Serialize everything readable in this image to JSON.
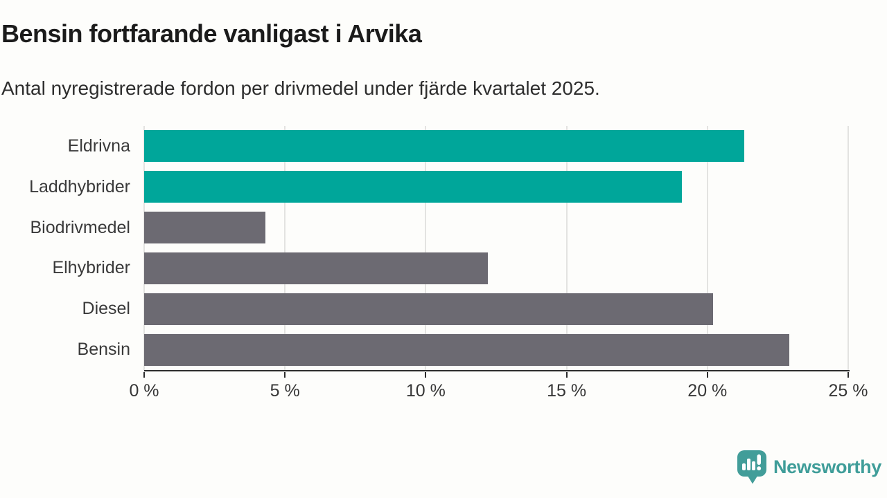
{
  "header": {
    "title": "Bensin fortfarande vanligast i Arvika",
    "subtitle": "Antal nyregistrerade fordon per drivmedel under fjärde kvartalet 2025."
  },
  "chart_data": {
    "type": "bar",
    "orientation": "horizontal",
    "title": "Bensin fortfarande vanligast i Arvika",
    "subtitle": "Antal nyregistrerade fordon per drivmedel under fjärde kvartalet 2025.",
    "categories": [
      "Eldrivna",
      "Laddhybrider",
      "Biodrivmedel",
      "Elhybrider",
      "Diesel",
      "Bensin"
    ],
    "values": [
      21.3,
      19.1,
      4.3,
      12.2,
      20.2,
      22.9
    ],
    "unit": "%",
    "xlim": [
      0,
      25
    ],
    "x_tick_values": [
      0,
      5,
      10,
      15,
      20,
      25
    ],
    "x_ticks": [
      "0 %",
      "5 %",
      "10 %",
      "15 %",
      "20 %",
      "25 %"
    ],
    "grid": true,
    "legend": "none",
    "bar_colors": [
      "#00a69a",
      "#00a69a",
      "#6c6a72",
      "#6c6a72",
      "#6c6a72",
      "#6c6a72"
    ],
    "highlight_color": "#00a69a",
    "default_color": "#6c6a72",
    "gridline_color": "#e3e3e1",
    "axis_color": "#2c2c2c"
  },
  "footer": {
    "brand": "Newsworthy",
    "logo_icon": "bar-chart-speech-bubble-icon",
    "brand_color": "#3f9d99"
  }
}
